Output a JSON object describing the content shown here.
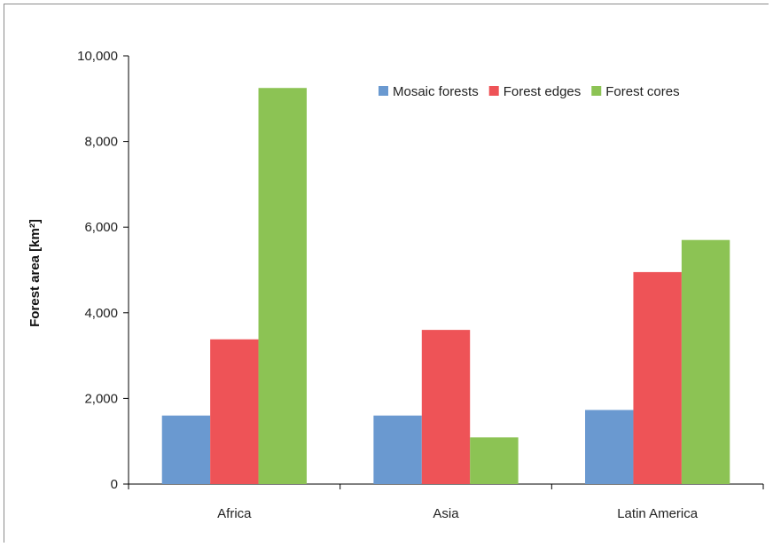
{
  "chart_data": {
    "type": "bar",
    "title": "",
    "xlabel": "",
    "ylabel": "Forest area [km²]",
    "ylim": [
      0,
      10000
    ],
    "yticks": [
      0,
      2000,
      4000,
      6000,
      8000,
      10000
    ],
    "ytick_labels": [
      "0",
      "2,000",
      "4,000",
      "6,000",
      "8,000",
      "10,000"
    ],
    "categories": [
      "Africa",
      "Asia",
      "Latin America"
    ],
    "series": [
      {
        "name": "Mosaic forests",
        "color": "#6a99d0",
        "values": [
          1600,
          1600,
          1730
        ]
      },
      {
        "name": "Forest edges",
        "color": "#ee5357",
        "values": [
          3380,
          3600,
          4950
        ]
      },
      {
        "name": "Forest cores",
        "color": "#8cc354",
        "values": [
          9250,
          1090,
          5700
        ]
      }
    ],
    "legend_position": "top-right",
    "grid": false
  }
}
